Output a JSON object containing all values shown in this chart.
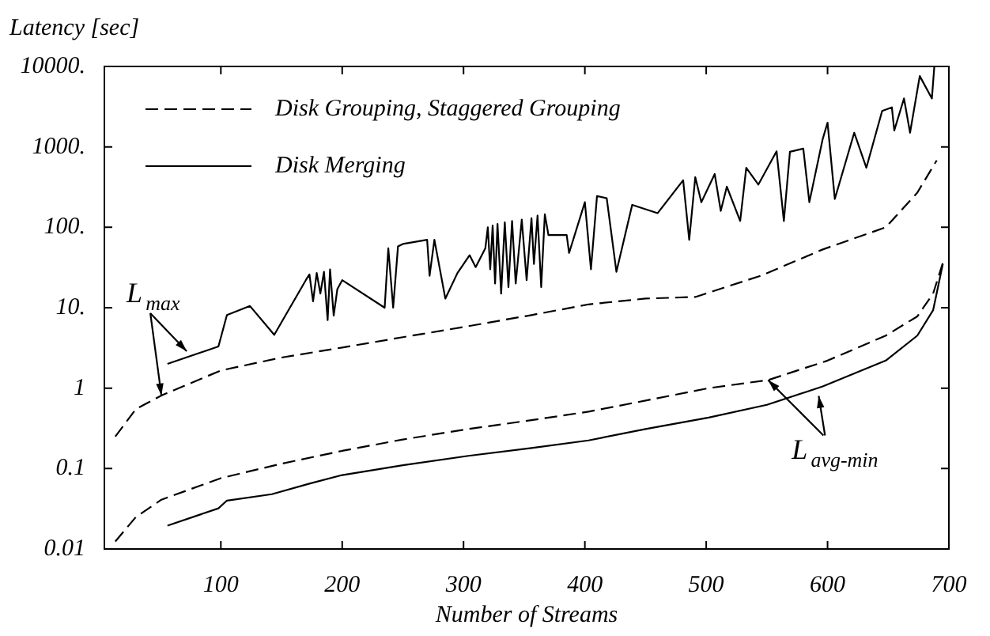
{
  "chart_data": {
    "type": "line",
    "xlabel": "Number of Streams",
    "ylabel": "Latency [sec]",
    "log": "y",
    "legend": "top left",
    "xlim": [
      4,
      700
    ],
    "xticks": [
      100,
      200,
      300,
      400,
      500,
      600,
      700
    ],
    "ylim": [
      0.01,
      10000
    ],
    "yticks": [
      {
        "value": 0.01,
        "label": "0.01"
      },
      {
        "value": 0.1,
        "label": "0.1"
      },
      {
        "value": 1,
        "label": "1"
      },
      {
        "value": 10,
        "label": "10."
      },
      {
        "value": 100,
        "label": "100."
      },
      {
        "value": 1000,
        "label": "1000."
      },
      {
        "value": 10000,
        "label": "10000."
      }
    ],
    "series": [
      {
        "name": "Disk Grouping, Staggered Grouping",
        "color": "#000000",
        "line_style": "dashed",
        "x": [
          13,
          30,
          51,
          100,
          150,
          200,
          250,
          304,
          356,
          403,
          450,
          491,
          545,
          596,
          648,
          674,
          690
        ],
        "values": [
          0.25,
          0.55,
          0.81,
          1.66,
          2.4,
          3.2,
          4.3,
          5.9,
          8.1,
          11,
          13,
          13.6,
          25,
          53,
          100,
          270,
          680
        ]
      },
      {
        "name": "Disk Merging",
        "color": "#000000",
        "line_style": "solid",
        "x": [
          56,
          98,
          105,
          124,
          144,
          170,
          173,
          176,
          179,
          182,
          185,
          188,
          190,
          193,
          196,
          200,
          235,
          238,
          242,
          246,
          250,
          270,
          272,
          276,
          285,
          295,
          305,
          310,
          318,
          320,
          322,
          324,
          326,
          328,
          331,
          334,
          337,
          340,
          343,
          348,
          352,
          356,
          358,
          361,
          364,
          367,
          370,
          385,
          387,
          400,
          405,
          410,
          418,
          426,
          439,
          460,
          481,
          486,
          491,
          496,
          507,
          512,
          517,
          528,
          533,
          543,
          558,
          564,
          569,
          580,
          585,
          596,
          600,
          606,
          622,
          632,
          645,
          653,
          655,
          663,
          668,
          676,
          686,
          688
        ],
        "values": [
          2,
          3.3,
          8.1,
          10.5,
          4.6,
          22,
          26,
          12,
          27,
          15,
          28,
          7,
          30,
          8,
          17,
          22,
          10,
          55,
          10,
          58,
          62,
          70,
          25,
          70,
          13,
          27,
          45,
          32,
          55,
          100,
          30,
          105,
          20,
          110,
          15,
          115,
          18,
          120,
          20,
          125,
          22,
          130,
          35,
          140,
          18,
          145,
          80,
          80,
          48,
          205,
          30,
          245,
          230,
          28,
          190,
          150,
          385,
          70,
          420,
          205,
          460,
          160,
          320,
          120,
          550,
          340,
          880,
          120,
          870,
          950,
          205,
          1250,
          2000,
          225,
          1500,
          550,
          2800,
          3100,
          1600,
          4000,
          1500,
          7600,
          4000,
          10000
        ]
      },
      {
        "color": "#000000",
        "line_style": "dashed",
        "x": [
          13,
          30,
          51,
          100,
          150,
          200,
          250,
          304,
          356,
          403,
          450,
          502,
          551,
          600,
          648,
          674,
          687,
          695
        ],
        "values": [
          0.0124,
          0.025,
          0.041,
          0.076,
          0.115,
          0.166,
          0.23,
          0.31,
          0.4,
          0.51,
          0.7,
          1.0,
          1.26,
          2.2,
          4.5,
          7.8,
          15,
          36
        ]
      },
      {
        "color": "#000000",
        "line_style": "solid",
        "x": [
          56,
          98,
          105,
          142,
          173,
          200,
          250,
          304,
          356,
          403,
          450,
          502,
          550,
          596,
          648,
          674,
          687,
          695
        ],
        "values": [
          0.0195,
          0.032,
          0.04,
          0.048,
          0.065,
          0.083,
          0.11,
          0.144,
          0.18,
          0.224,
          0.31,
          0.43,
          0.62,
          1.05,
          2.2,
          4.5,
          9.3,
          35
        ]
      }
    ],
    "annotations": [
      {
        "text": "L$_{max}$",
        "x": 51,
        "y": 0.81
      },
      {
        "text": "L$_{avg-min}$",
        "x": 551,
        "y": 1.26
      }
    ]
  }
}
